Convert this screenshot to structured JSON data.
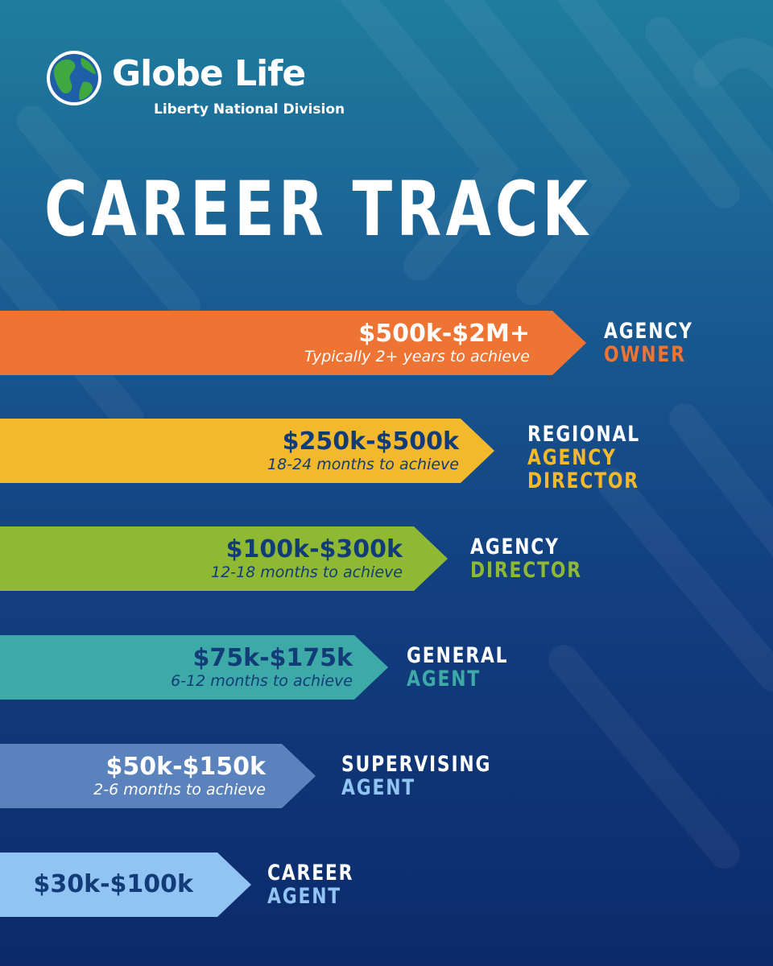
{
  "brand": {
    "name": "Globe Life",
    "division": "Liberty National Division",
    "logo_icon": "globe-icon"
  },
  "title": "CAREER TRACK",
  "colors": {
    "orange": "#ee7433",
    "yellow": "#f3b82b",
    "green": "#8fb833",
    "teal": "#3eaaa8",
    "slate": "#5a82bd",
    "light_blue": "#91c3f3",
    "navy_text": "#123c78",
    "white": "#ffffff"
  },
  "tiers": [
    {
      "salary": "$500k-$2M+",
      "time": "Typically 2+ years to achieve",
      "role": [
        "AGENCY",
        "OWNER"
      ],
      "role_highlight_index": 1
    },
    {
      "salary": "$250k-$500k",
      "time": "18-24 months to achieve",
      "role": [
        "REGIONAL",
        "AGENCY",
        "DIRECTOR"
      ],
      "role_highlight_index": 1
    },
    {
      "salary": "$100k-$300k",
      "time": "12-18 months to achieve",
      "role": [
        "AGENCY",
        "DIRECTOR"
      ],
      "role_highlight_index": 1
    },
    {
      "salary": "$75k-$175k",
      "time": "6-12 months to achieve",
      "role": [
        "GENERAL",
        "AGENT"
      ],
      "role_highlight_index": 1
    },
    {
      "salary": "$50k-$150k",
      "time": "2-6 months to achieve",
      "role": [
        "SUPERVISING",
        "AGENT"
      ],
      "role_highlight_index": 1
    },
    {
      "salary": "$30k-$100k",
      "time": "",
      "role": [
        "CAREER",
        "AGENT"
      ],
      "role_highlight_index": 1
    }
  ]
}
